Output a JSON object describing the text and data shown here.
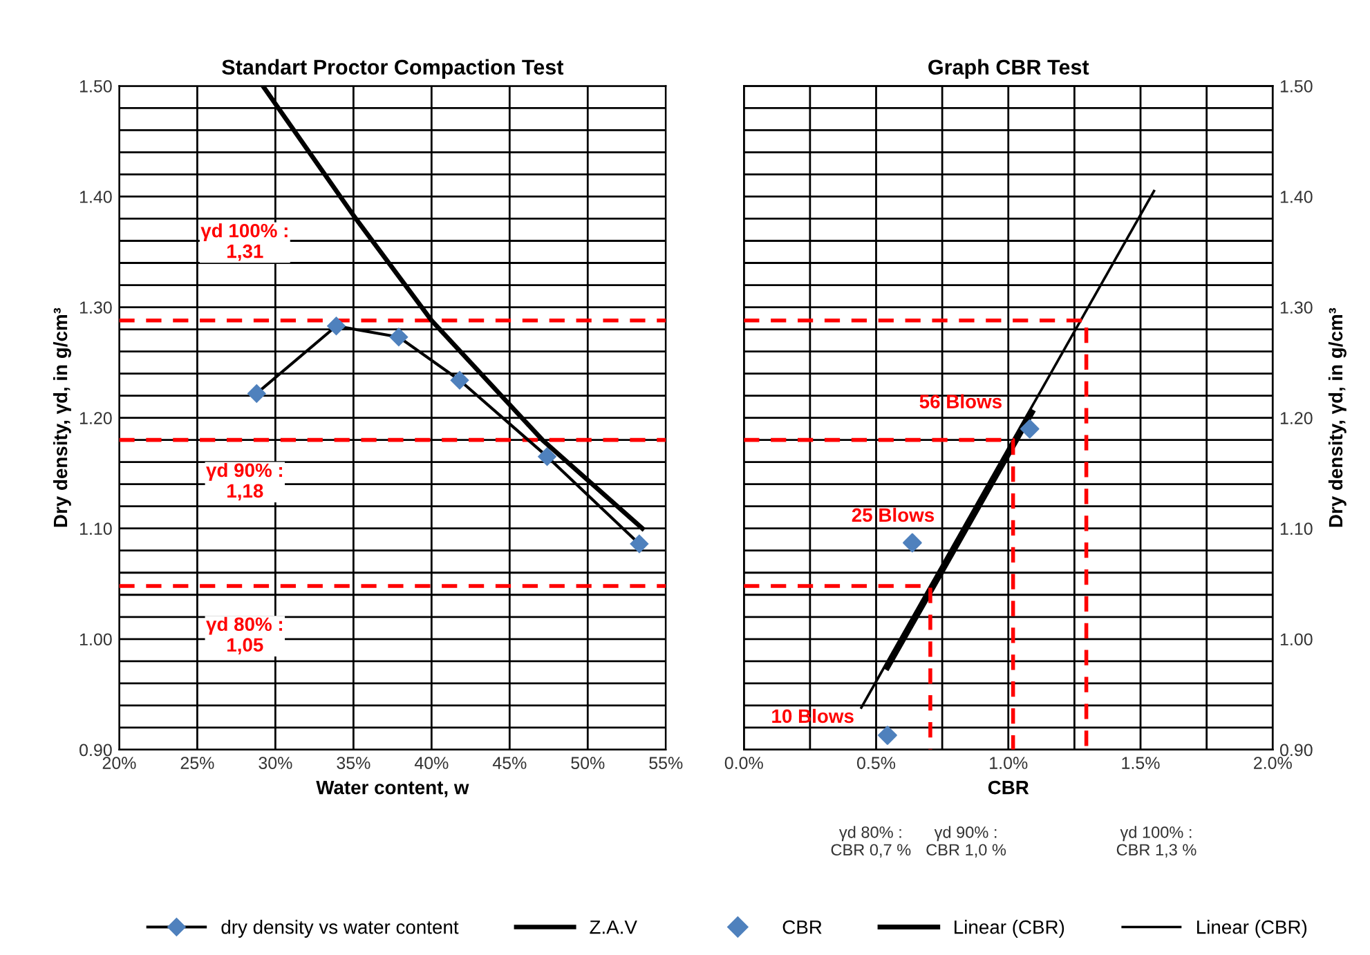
{
  "chart_data": [
    {
      "type": "line",
      "title": "Standart Proctor Compaction Test",
      "xlabel": "Water content, w",
      "ylabel": "Dry density, γd, in g/cm³",
      "series": [
        {
          "name": "dry density vs water content",
          "color": "#4f81bd",
          "marker": "diamond",
          "x": [
            28.8,
            33.9,
            37.9,
            41.8,
            47.4,
            53.3
          ],
          "values": [
            1.222,
            1.283,
            1.273,
            1.234,
            1.165,
            1.086
          ]
        },
        {
          "name": "Z.A.V",
          "color": "#000000",
          "marker": "none",
          "x": [
            29.2,
            35,
            40,
            47.1,
            53.5
          ],
          "values": [
            1.5,
            1.383,
            1.288,
            1.18,
            1.1
          ]
        }
      ],
      "xlim": [
        20,
        55
      ],
      "xticks": [
        {
          "value": 20,
          "label": "20%"
        },
        {
          "value": 25,
          "label": "25%"
        },
        {
          "value": 30,
          "label": "30%"
        },
        {
          "value": 35,
          "label": "35%"
        },
        {
          "value": 40,
          "label": "40%"
        },
        {
          "value": 45,
          "label": "45%"
        },
        {
          "value": 50,
          "label": "50%"
        },
        {
          "value": 55,
          "label": "55%"
        }
      ],
      "ylim": [
        0.9,
        1.5
      ],
      "yticks": [
        {
          "value": 0.9,
          "label": "0.90"
        },
        {
          "value": 0.92,
          "label": null
        },
        {
          "value": 0.94,
          "label": null
        },
        {
          "value": 0.96,
          "label": null
        },
        {
          "value": 0.98,
          "label": null
        },
        {
          "value": 1.0,
          "label": "1.00"
        },
        {
          "value": 1.02,
          "label": null
        },
        {
          "value": 1.04,
          "label": null
        },
        {
          "value": 1.06,
          "label": null
        },
        {
          "value": 1.08,
          "label": null
        },
        {
          "value": 1.1,
          "label": "1.10"
        },
        {
          "value": 1.12,
          "label": null
        },
        {
          "value": 1.14,
          "label": null
        },
        {
          "value": 1.16,
          "label": null
        },
        {
          "value": 1.18,
          "label": null
        },
        {
          "value": 1.2,
          "label": "1.20"
        },
        {
          "value": 1.22,
          "label": null
        },
        {
          "value": 1.24,
          "label": null
        },
        {
          "value": 1.26,
          "label": null
        },
        {
          "value": 1.28,
          "label": null
        },
        {
          "value": 1.3,
          "label": "1.30"
        },
        {
          "value": 1.32,
          "label": null
        },
        {
          "value": 1.34,
          "label": null
        },
        {
          "value": 1.36,
          "label": null
        },
        {
          "value": 1.38,
          "label": null
        },
        {
          "value": 1.4,
          "label": "1.40"
        },
        {
          "value": 1.42,
          "label": null
        },
        {
          "value": 1.44,
          "label": null
        },
        {
          "value": 1.46,
          "label": null
        },
        {
          "value": 1.48,
          "label": null
        },
        {
          "value": 1.5,
          "label": "1.50"
        }
      ],
      "ref_lines": [
        {
          "axis": "y",
          "value": 1.288,
          "color": "#ff0000",
          "line_style": "dashed"
        },
        {
          "axis": "y",
          "value": 1.18,
          "color": "#ff0000",
          "line_style": "dashed"
        },
        {
          "axis": "y",
          "value": 1.048,
          "color": "#ff0000",
          "line_style": "dashed"
        }
      ],
      "annotations": [
        "γd 100% :\n1,31",
        "γd 90% :\n1,18",
        "γd 80% :\n1,05"
      ],
      "grid": true,
      "legend": "bottom"
    },
    {
      "type": "scatter",
      "title": "Graph CBR Test",
      "xlabel": "CBR",
      "y2label": "Dry density, γd, in g/cm³",
      "series": [
        {
          "name": "CBR",
          "axis": "y2",
          "color": "#4f81bd",
          "marker": "diamond",
          "x": [
            0.543,
            0.637,
            1.081
          ],
          "values": [
            0.913,
            1.087,
            1.19
          ]
        },
        {
          "type": "line",
          "axis": "y2",
          "name": "Linear (CBR)",
          "color": "#000000",
          "marker": "none",
          "x": [
            0.543,
            1.091
          ],
          "values": [
            0.974,
            1.205
          ]
        },
        {
          "type": "line",
          "axis": "y2",
          "name": "Linear (CBR)",
          "color": "#000000",
          "marker": "none",
          "x": [
            0.444,
            1.551
          ],
          "values": [
            0.938,
            1.405
          ]
        },
        {
          "type": "line",
          "color": "#ff0000",
          "marker": "none",
          "line_style": "dashed",
          "axis": "y2",
          "x": [
            0,
            0.705,
            0.705
          ],
          "values": [
            1.048,
            1.048,
            0.9
          ]
        },
        {
          "type": "line",
          "color": "#ff0000",
          "marker": "none",
          "line_style": "dashed",
          "axis": "y2",
          "x": [
            0,
            1.018,
            1.018
          ],
          "values": [
            1.18,
            1.18,
            0.9
          ]
        },
        {
          "type": "line",
          "color": "#ff0000",
          "marker": "none",
          "line_style": "dashed",
          "axis": "y2",
          "x": [
            0,
            1.295,
            1.295
          ],
          "values": [
            1.288,
            1.288,
            0.9
          ]
        }
      ],
      "xlim": [
        0,
        2
      ],
      "xticks": [
        {
          "value": 0,
          "label": "0.0%"
        },
        {
          "value": 0.25,
          "label": null
        },
        {
          "value": 0.5,
          "label": "0.5%"
        },
        {
          "value": 0.75,
          "label": null
        },
        {
          "value": 1.0,
          "label": "1.0%"
        },
        {
          "value": 1.25,
          "label": null
        },
        {
          "value": 1.5,
          "label": "1.5%"
        },
        {
          "value": 1.75,
          "label": null
        },
        {
          "value": 2.0,
          "label": "2.0%"
        }
      ],
      "y2lim": [
        0.9,
        1.5
      ],
      "y2ticks": [
        {
          "value": 0.9,
          "label": "0.90"
        },
        {
          "value": 0.92,
          "label": null
        },
        {
          "value": 0.94,
          "label": null
        },
        {
          "value": 0.96,
          "label": null
        },
        {
          "value": 0.98,
          "label": null
        },
        {
          "value": 1.0,
          "label": "1.00"
        },
        {
          "value": 1.02,
          "label": null
        },
        {
          "value": 1.04,
          "label": null
        },
        {
          "value": 1.06,
          "label": null
        },
        {
          "value": 1.08,
          "label": null
        },
        {
          "value": 1.1,
          "label": "1.10"
        },
        {
          "value": 1.12,
          "label": null
        },
        {
          "value": 1.14,
          "label": null
        },
        {
          "value": 1.16,
          "label": null
        },
        {
          "value": 1.18,
          "label": null
        },
        {
          "value": 1.2,
          "label": "1.20"
        },
        {
          "value": 1.22,
          "label": null
        },
        {
          "value": 1.24,
          "label": null
        },
        {
          "value": 1.26,
          "label": null
        },
        {
          "value": 1.28,
          "label": null
        },
        {
          "value": 1.3,
          "label": "1.30"
        },
        {
          "value": 1.32,
          "label": null
        },
        {
          "value": 1.34,
          "label": null
        },
        {
          "value": 1.36,
          "label": null
        },
        {
          "value": 1.38,
          "label": null
        },
        {
          "value": 1.4,
          "label": "1.40"
        },
        {
          "value": 1.42,
          "label": null
        },
        {
          "value": 1.44,
          "label": null
        },
        {
          "value": 1.46,
          "label": null
        },
        {
          "value": 1.48,
          "label": null
        },
        {
          "value": 1.5,
          "label": "1.50"
        }
      ],
      "annotations": [
        "56 Blows",
        "25 Blows",
        "10 Blows",
        "γd 80% :\nCBR 0,7 %",
        "γd 90% :\nCBR 1,0 %",
        "γd 100% :\nCBR 1,3 %"
      ],
      "grid": true,
      "legend": "bottom"
    }
  ]
}
